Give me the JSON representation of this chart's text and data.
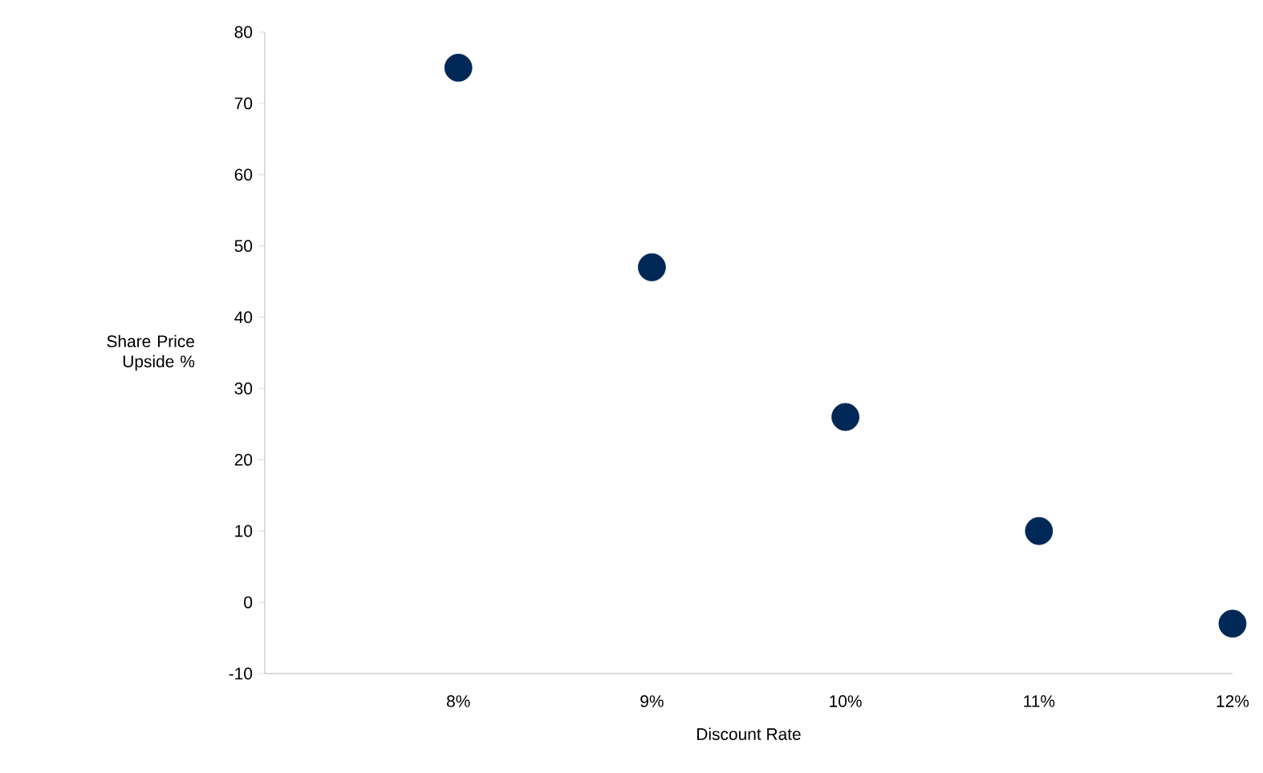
{
  "chart_data": {
    "type": "scatter",
    "xlabel": "Discount Rate",
    "ylabel": "Share Price Upside %",
    "x": [
      8,
      9,
      10,
      11,
      12
    ],
    "values": [
      75,
      47,
      26,
      10,
      -3
    ],
    "color": "#002856",
    "marker": "circle",
    "grid": false,
    "xlim": [
      7,
      12
    ],
    "xticks": [
      {
        "value": 8,
        "label": "8%"
      },
      {
        "value": 9,
        "label": "9%"
      },
      {
        "value": 10,
        "label": "10%"
      },
      {
        "value": 11,
        "label": "11%"
      },
      {
        "value": 12,
        "label": "12%"
      }
    ],
    "ylim": [
      -10,
      80
    ],
    "yticks": [
      -10,
      0,
      10,
      20,
      30,
      40,
      50,
      60,
      70,
      80
    ]
  }
}
